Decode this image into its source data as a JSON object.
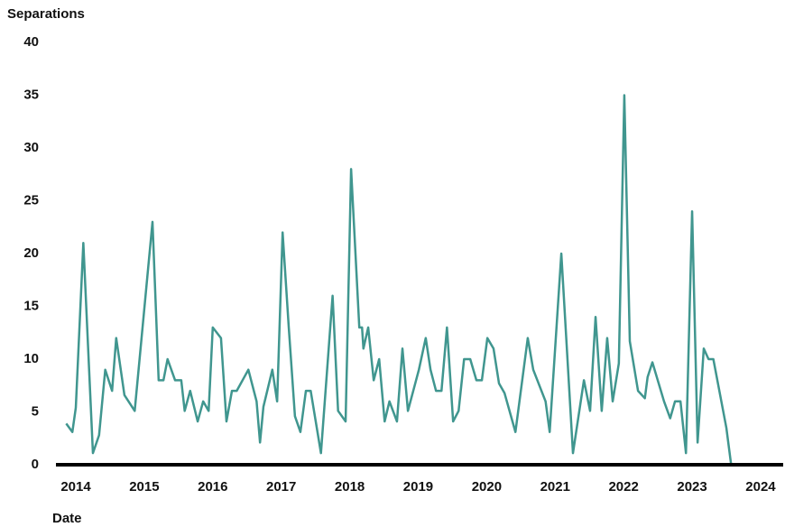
{
  "chart_data": {
    "type": "line",
    "y_label": "Separations",
    "x_label": "Date",
    "x": [
      2013.86,
      2013.95,
      2014.0,
      2014.11,
      2014.25,
      2014.34,
      2014.43,
      2014.53,
      2014.59,
      2014.71,
      2014.86,
      2015.12,
      2015.21,
      2015.28,
      2015.34,
      2015.45,
      2015.54,
      2015.59,
      2015.67,
      2015.78,
      2015.86,
      2015.94,
      2016.0,
      2016.12,
      2016.2,
      2016.28,
      2016.35,
      2016.52,
      2016.64,
      2016.69,
      2016.74,
      2016.87,
      2016.94,
      2017.02,
      2017.11,
      2017.2,
      2017.28,
      2017.36,
      2017.43,
      2017.58,
      2017.75,
      2017.83,
      2017.94,
      2018.02,
      2018.14,
      2018.18,
      2018.2,
      2018.27,
      2018.35,
      2018.43,
      2018.51,
      2018.58,
      2018.69,
      2018.77,
      2018.85,
      2019.01,
      2019.11,
      2019.18,
      2019.26,
      2019.34,
      2019.42,
      2019.51,
      2019.59,
      2019.67,
      2019.76,
      2019.85,
      2019.93,
      2020.01,
      2020.1,
      2020.18,
      2020.26,
      2020.42,
      2020.6,
      2020.68,
      2020.86,
      2020.92,
      2021.09,
      2021.26,
      2021.42,
      2021.51,
      2021.59,
      2021.68,
      2021.76,
      2021.84,
      2021.93,
      2022.01,
      2022.09,
      2022.21,
      2022.31,
      2022.35,
      2022.42,
      2022.59,
      2022.68,
      2022.75,
      2022.83,
      2022.91,
      2023.0,
      2023.08,
      2023.17,
      2023.24,
      2023.31,
      2023.5,
      2023.57,
      2023.83
    ],
    "series": [
      {
        "color": "#40968f",
        "values": [
          3.9,
          3.1,
          5.4,
          21,
          1.1,
          2.8,
          9,
          7,
          12,
          6.6,
          5.1,
          23,
          8,
          8,
          10,
          8,
          8,
          5.1,
          7,
          4.1,
          6,
          5.1,
          13,
          12,
          4.1,
          7,
          7,
          9,
          6,
          2.1,
          5.5,
          9,
          6,
          22,
          13,
          4.6,
          3.1,
          7,
          7,
          1.1,
          16,
          5.1,
          4.1,
          28,
          13,
          13,
          11,
          13,
          8,
          10,
          4.1,
          6,
          4.1,
          11,
          5.1,
          9,
          12,
          9,
          7,
          7,
          13,
          4.1,
          5.1,
          10,
          10,
          8,
          8,
          12,
          11,
          7.7,
          6.8,
          3.1,
          12,
          9,
          6,
          3.1,
          20,
          1.1,
          8,
          5.1,
          14,
          5.1,
          12,
          6,
          9.6,
          35,
          11.7,
          7,
          6.3,
          8.3,
          9.7,
          6,
          4.4,
          6,
          6,
          1.1,
          24,
          2.1,
          11,
          10,
          10,
          3.5,
          0,
          0
        ]
      }
    ],
    "xlim": [
      2013.71,
      2024.33
    ],
    "xticks": [
      2014,
      2015,
      2016,
      2017,
      2018,
      2019,
      2020,
      2021,
      2022,
      2023,
      2024
    ],
    "ylim": [
      0,
      40
    ],
    "yticks": [
      0,
      5,
      10,
      15,
      20,
      25,
      30,
      35,
      40
    ],
    "grid": false
  }
}
